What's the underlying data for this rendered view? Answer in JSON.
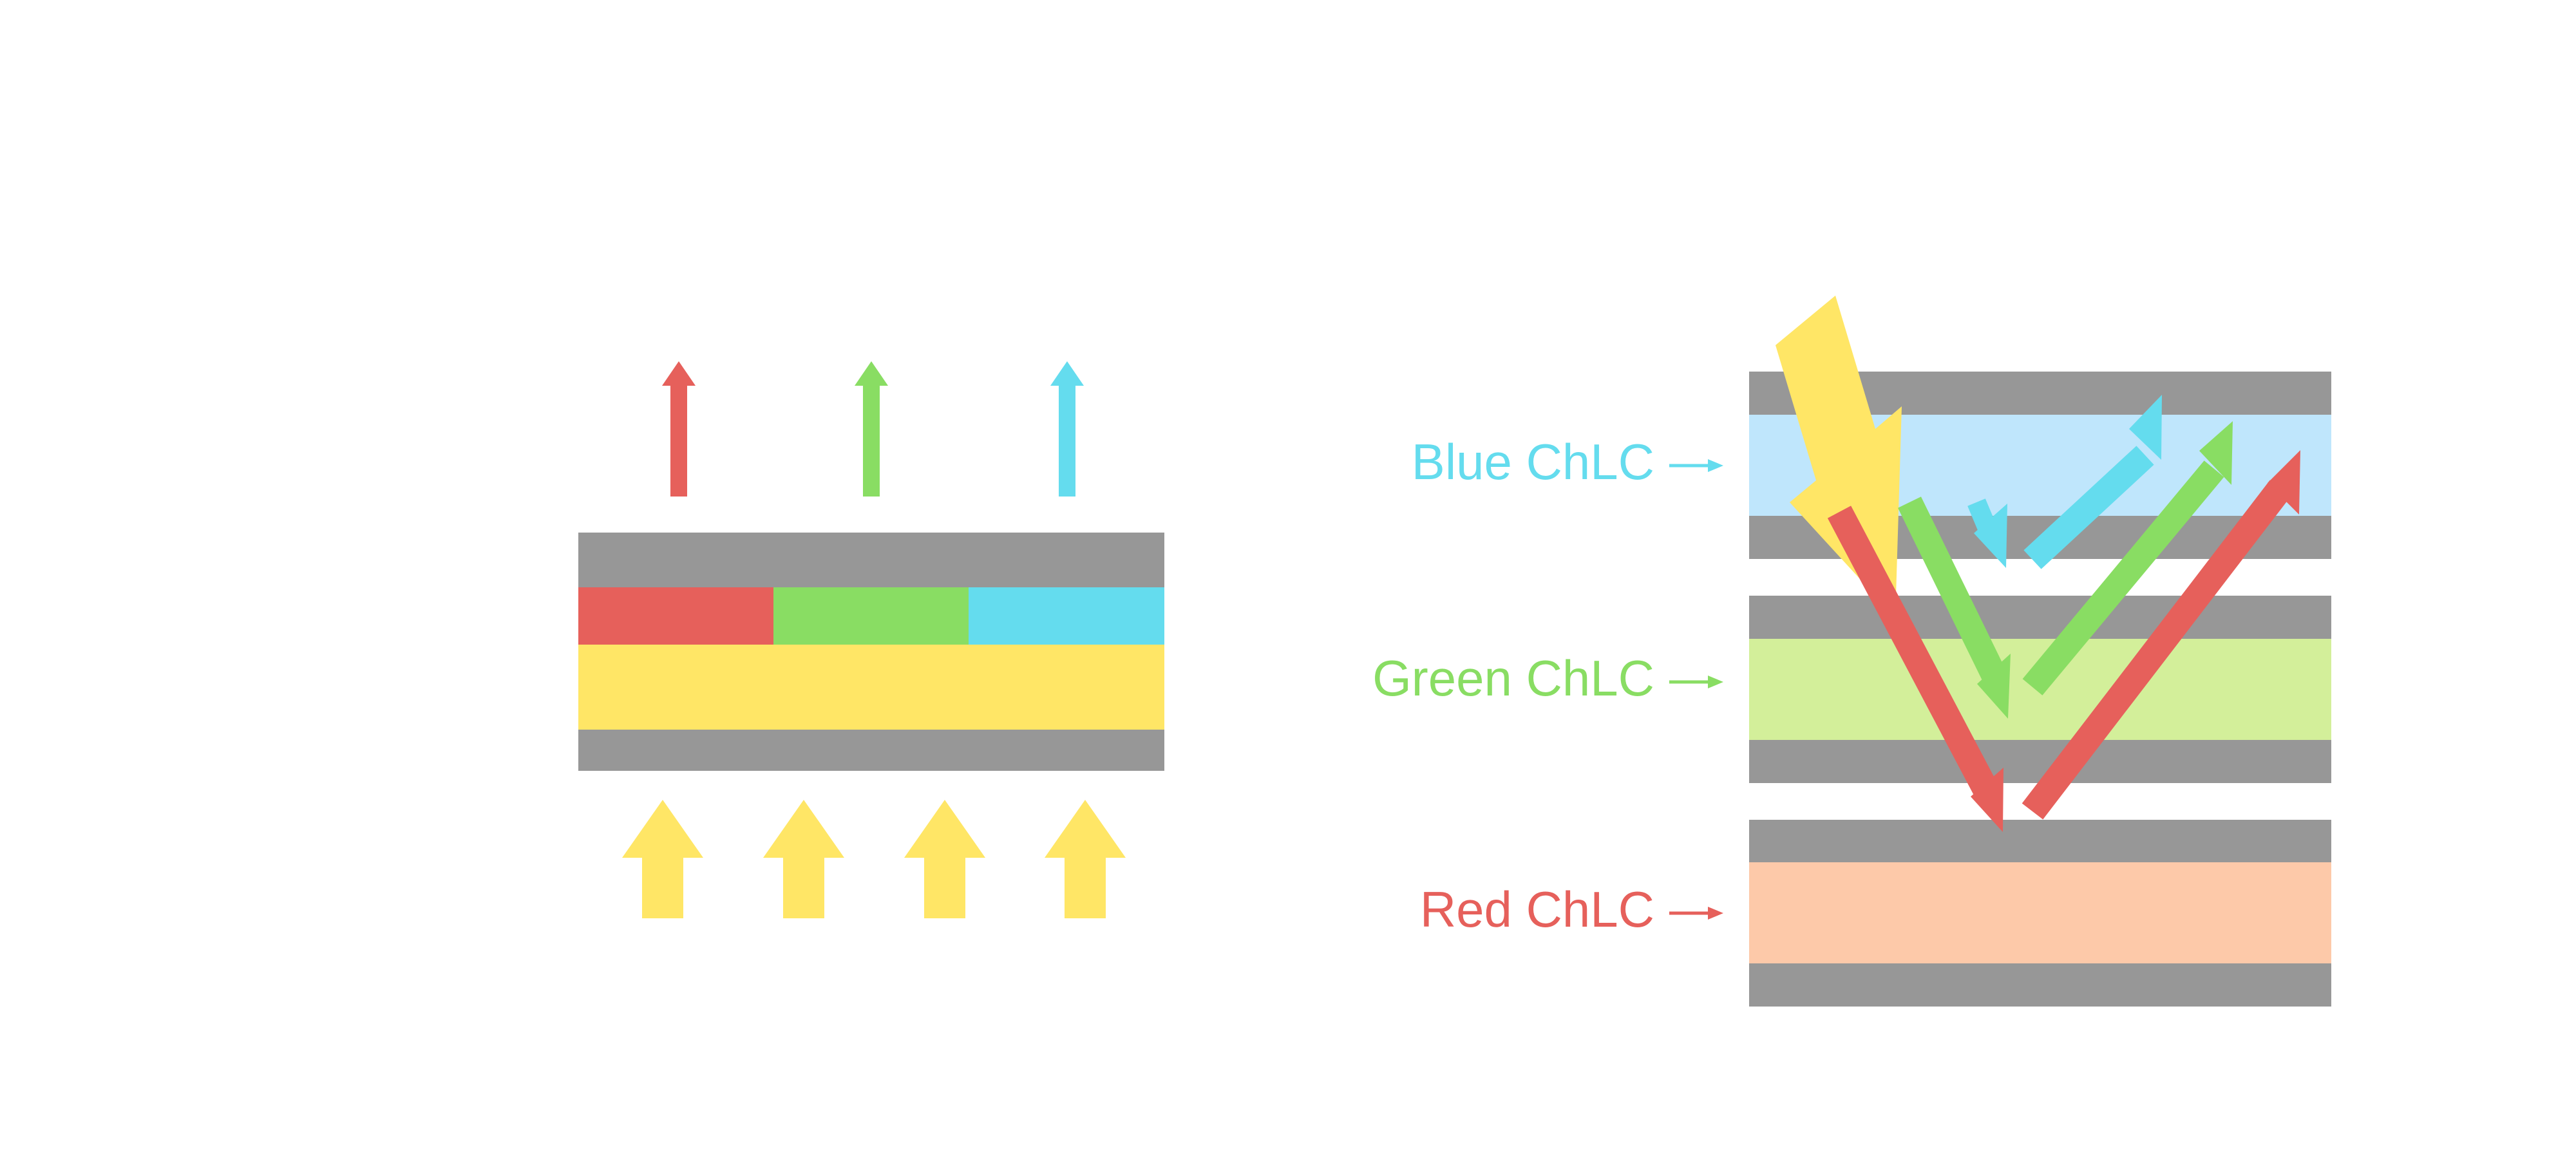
{
  "colors": {
    "red": "#E6605B",
    "green": "#89DD63",
    "blue": "#64DCEE",
    "yellow": "#FFE666",
    "gray": "#979797",
    "blue_layer": "#BFE6FC",
    "green_layer": "#D3EF9A",
    "red_layer": "#FDC9A9"
  },
  "right_diagram": {
    "labels": [
      {
        "text": "Blue ChLC",
        "color": "blue"
      },
      {
        "text": "Green ChLC",
        "color": "green"
      },
      {
        "text": "Red ChLC",
        "color": "red"
      }
    ]
  }
}
